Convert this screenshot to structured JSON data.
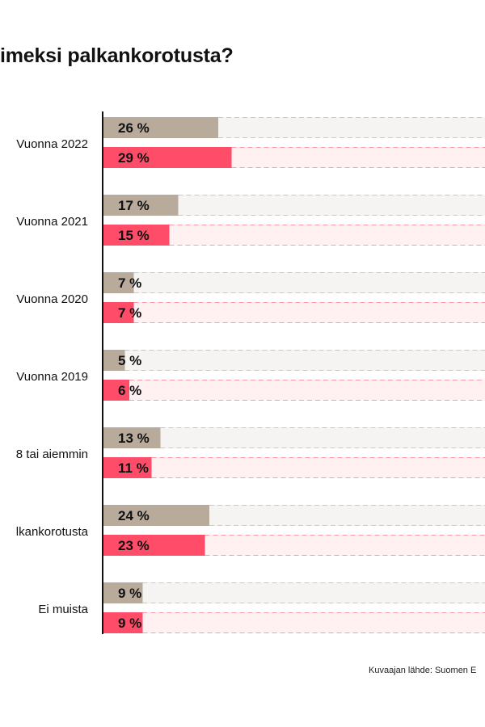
{
  "chart_data": {
    "type": "bar",
    "orientation": "horizontal",
    "title": "imeksi palkankorotusta?",
    "categories": [
      "Vuonna 2022",
      "Vuonna 2021",
      "Vuonna 2020",
      "Vuonna 2019",
      "8 tai aiemmin",
      "lkankorotusta",
      "Ei muista"
    ],
    "series": [
      {
        "values": [
          26,
          17,
          7,
          5,
          13,
          24,
          9
        ],
        "color": "#b8ab9c",
        "track_color": "#f5f4f2",
        "dash_color": "#cfc8c0"
      },
      {
        "values": [
          29,
          15,
          7,
          6,
          11,
          23,
          9
        ],
        "color": "#ff4c68",
        "track_color": "#fff0f2",
        "dash_color": "#ff9aa8"
      }
    ],
    "value_suffix": " %",
    "xlim": [
      0,
      100
    ],
    "grid": false,
    "legend": "none"
  },
  "source": "Kuvaajan lähde: Suomen E"
}
